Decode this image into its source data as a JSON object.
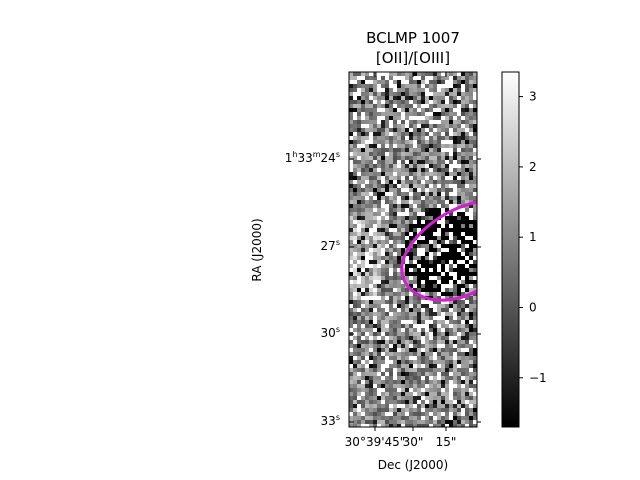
{
  "chart_data": {
    "type": "heatmap",
    "title": "BCLMP 1007",
    "subtitle": "[OII]/[OIII]",
    "xlabel": "Dec (J2000)",
    "ylabel": "RA (J2000)",
    "x_ticks": [
      "30°39'45\"",
      "30\"",
      "15\""
    ],
    "y_ticks": [
      {
        "value_seconds": 24,
        "label_prefix": "1",
        "h": "h",
        "mid1": "33",
        "m": "m",
        "mid2": "24",
        "s": "s"
      },
      {
        "value_seconds": 27,
        "label": "27",
        "s": "s"
      },
      {
        "value_seconds": 30,
        "label": "30",
        "s": "s"
      },
      {
        "value_seconds": 33,
        "label": "33",
        "s": "s"
      }
    ],
    "colorbar": {
      "colormap": "gray",
      "min": -1.7,
      "max": 3.35,
      "ticks": [
        -1,
        0,
        1,
        2,
        3
      ],
      "tick_labels": [
        "−1",
        "0",
        "1",
        "2",
        "3"
      ]
    },
    "region": {
      "shape": "ellipse",
      "color": "#d020d0"
    },
    "grid": false
  }
}
